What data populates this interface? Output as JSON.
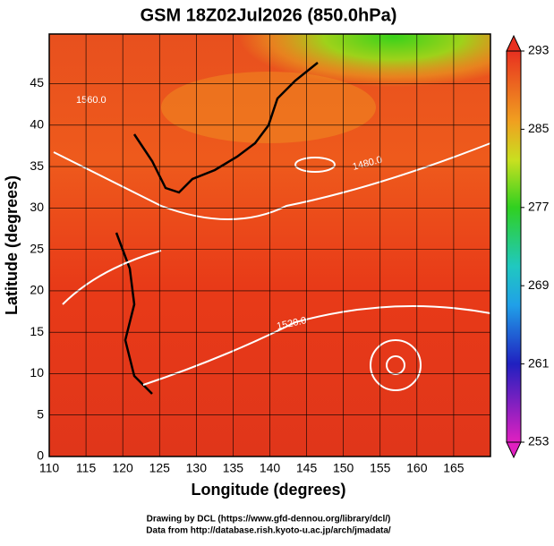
{
  "title": "GSM 18Z02Jul2026 (850.0hPa)",
  "x_axis": {
    "label": "Longitude (degrees)",
    "lim": [
      110,
      170
    ],
    "ticks": [
      110,
      115,
      120,
      125,
      130,
      135,
      140,
      145,
      150,
      155,
      160,
      165
    ]
  },
  "y_axis": {
    "label": "Latitude  (degrees)",
    "lim": [
      0,
      51
    ],
    "ticks": [
      0,
      5,
      10,
      15,
      20,
      25,
      30,
      35,
      40,
      45
    ]
  },
  "colorbar": {
    "lim": [
      253,
      293
    ],
    "ticks": [
      253,
      261,
      269,
      277,
      285,
      293
    ]
  },
  "contour_labels": [
    "1560.0",
    "1520.0",
    "1480.0"
  ],
  "credits": [
    "Drawing by DCL (https://www.gfd-dennou.org/library/dcl/)",
    "Data from http://database.rish.kyoto-u.ac.jp/arch/jmadata/"
  ]
}
